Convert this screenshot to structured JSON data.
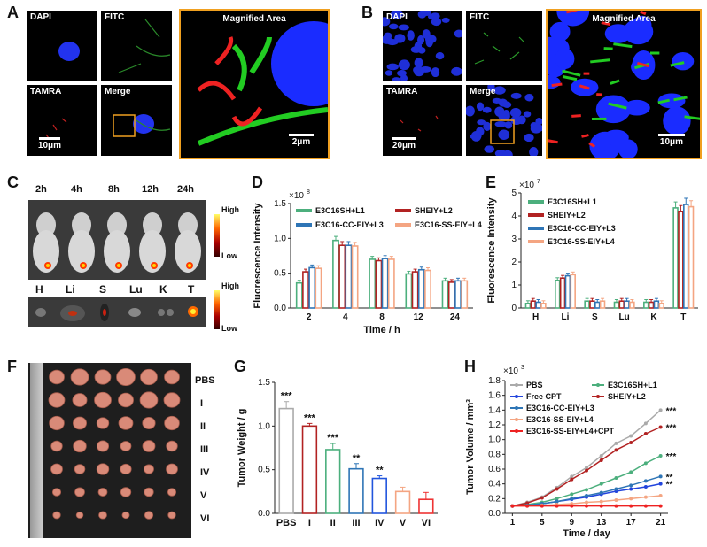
{
  "panels": {
    "A": {
      "letter": "A",
      "tiles": [
        "DAPI",
        "FITC",
        "TAMRA",
        "Merge"
      ],
      "magnified_title": "Magnified Area",
      "scale_small": "10μm",
      "scale_magnified": "2μm"
    },
    "B": {
      "letter": "B",
      "tiles": [
        "DAPI",
        "FITC",
        "TAMRA",
        "Merge"
      ],
      "magnified_title": "Magnified Area",
      "scale_small": "20μm",
      "scale_magnified": "10μm"
    },
    "C": {
      "letter": "C",
      "timepoints": [
        "2h",
        "4h",
        "8h",
        "12h",
        "24h"
      ],
      "organs": [
        "H",
        "Li",
        "S",
        "Lu",
        "K",
        "T"
      ],
      "colorbar_high": "High",
      "colorbar_low": "Low",
      "colors": {
        "background": "#333333",
        "hot": "#ff3b00",
        "warm": "#ffd400"
      }
    },
    "F": {
      "letter": "F",
      "rows": [
        "PBS",
        "I",
        "II",
        "III",
        "IV",
        "V",
        "VI"
      ],
      "tumor_color": "#d98a78"
    }
  },
  "charts": {
    "D": {
      "letter": "D",
      "multiplier": "×10",
      "multiplier_exp": "8",
      "ylabel": "Fluorescence Intensity",
      "xlabel": "Time / h"
    },
    "E": {
      "letter": "E",
      "multiplier": "×10",
      "multiplier_exp": "7",
      "ylabel": "Fluorescence Intensity",
      "xlabel": ""
    },
    "G": {
      "letter": "G",
      "ylabel": "Tumor Weight / g",
      "xlabel": ""
    },
    "H": {
      "letter": "H",
      "multiplier": "×10",
      "multiplier_exp": "3",
      "ylabel": "Tumor Volume / mm³",
      "xlabel": "Time / day"
    }
  },
  "chart_data": [
    {
      "id": "D",
      "type": "bar",
      "categories": [
        "2",
        "4",
        "8",
        "12",
        "24"
      ],
      "series": [
        {
          "name": "E3C16SH+L1",
          "color": "#4caf7d",
          "values": [
            0.36,
            0.97,
            0.7,
            0.49,
            0.39
          ]
        },
        {
          "name": "SHEIY+L2",
          "color": "#b22222",
          "values": [
            0.52,
            0.9,
            0.68,
            0.52,
            0.37
          ]
        },
        {
          "name": "E3C16-CC-EIY+L3",
          "color": "#2e75b6",
          "values": [
            0.58,
            0.9,
            0.71,
            0.55,
            0.39
          ]
        },
        {
          "name": "E3C16-SS-EIY+L4",
          "color": "#f4a582",
          "values": [
            0.57,
            0.89,
            0.7,
            0.54,
            0.39
          ]
        }
      ],
      "yticks": [
        "0.0",
        "0.5",
        "1.0",
        "1.5"
      ],
      "ylim": [
        0,
        1.5
      ],
      "legend": "top"
    },
    {
      "id": "E",
      "type": "bar",
      "categories": [
        "H",
        "Li",
        "S",
        "Lu",
        "K",
        "T"
      ],
      "series": [
        {
          "name": "E3C16SH+L1",
          "color": "#4caf7d",
          "values": [
            0.2,
            1.2,
            0.3,
            0.25,
            0.25,
            4.35
          ]
        },
        {
          "name": "SHEIY+L2",
          "color": "#b22222",
          "values": [
            0.3,
            1.3,
            0.3,
            0.3,
            0.25,
            4.2
          ]
        },
        {
          "name": "E3C16-CC-EIY+L3",
          "color": "#2e75b6",
          "values": [
            0.25,
            1.4,
            0.25,
            0.3,
            0.3,
            4.5
          ]
        },
        {
          "name": "E3C16-SS-EIY+L4",
          "color": "#f4a582",
          "values": [
            0.2,
            1.45,
            0.3,
            0.25,
            0.2,
            4.4
          ]
        }
      ],
      "yticks": [
        "0",
        "1",
        "2",
        "3",
        "4",
        "5"
      ],
      "ylim": [
        0,
        5
      ],
      "legend": "top-left"
    },
    {
      "id": "G",
      "type": "bar",
      "categories": [
        "PBS",
        "I",
        "II",
        "III",
        "IV",
        "V",
        "VI"
      ],
      "colors": [
        "#aaaaaa",
        "#b22222",
        "#4caf7d",
        "#2e75b6",
        "#2255dd",
        "#f4a582",
        "#ee3333"
      ],
      "values": [
        1.2,
        1.0,
        0.73,
        0.51,
        0.4,
        0.25,
        0.16
      ],
      "errors": [
        0.08,
        0.03,
        0.07,
        0.06,
        0.03,
        0.05,
        0.08
      ],
      "significance": [
        "***",
        "***",
        "***",
        "**",
        "**",
        "",
        ""
      ],
      "yticks": [
        "0.0",
        "0.5",
        "1.0",
        "1.5"
      ],
      "ylim": [
        0,
        1.5
      ]
    },
    {
      "id": "H",
      "type": "line",
      "x": [
        1,
        3,
        5,
        7,
        9,
        11,
        13,
        15,
        17,
        19,
        21
      ],
      "xticks": [
        "1",
        "5",
        "9",
        "13",
        "17",
        "21"
      ],
      "yticks": [
        "0.0",
        "0.2",
        "0.4",
        "0.6",
        "0.8",
        "1.0",
        "1.2",
        "1.4",
        "1.6",
        "1.8"
      ],
      "ylim": [
        0,
        1.8
      ],
      "xlim": [
        0,
        22
      ],
      "series": [
        {
          "name": "PBS",
          "color": "#aaaaaa",
          "values": [
            0.1,
            0.15,
            0.22,
            0.35,
            0.5,
            0.62,
            0.78,
            0.95,
            1.05,
            1.22,
            1.4
          ],
          "sig": "***"
        },
        {
          "name": "E3C16SH+L1",
          "color": "#4caf7d",
          "values": [
            0.1,
            0.12,
            0.15,
            0.2,
            0.26,
            0.32,
            0.4,
            0.48,
            0.56,
            0.68,
            0.78
          ],
          "sig": "***"
        },
        {
          "name": "Free CPT",
          "color": "#2244dd",
          "values": [
            0.1,
            0.11,
            0.13,
            0.16,
            0.19,
            0.22,
            0.26,
            0.3,
            0.33,
            0.36,
            0.4
          ],
          "sig": "**"
        },
        {
          "name": "SHEIY+L2",
          "color": "#b22222",
          "values": [
            0.1,
            0.14,
            0.21,
            0.33,
            0.46,
            0.58,
            0.72,
            0.86,
            0.96,
            1.08,
            1.17
          ],
          "sig": "***"
        },
        {
          "name": "E3C16-CC-EIY+L3",
          "color": "#2e75b6",
          "values": [
            0.1,
            0.11,
            0.13,
            0.16,
            0.2,
            0.24,
            0.28,
            0.33,
            0.38,
            0.44,
            0.5
          ],
          "sig": "**"
        },
        {
          "name": "E3C16-SS-EIY+L4",
          "color": "#f4a582",
          "values": [
            0.1,
            0.1,
            0.11,
            0.12,
            0.13,
            0.15,
            0.16,
            0.18,
            0.2,
            0.22,
            0.24
          ],
          "sig": ""
        },
        {
          "name": "E3C16-SS-EIY+L4+CPT",
          "color": "#ee2222",
          "values": [
            0.1,
            0.1,
            0.1,
            0.1,
            0.1,
            0.1,
            0.1,
            0.1,
            0.1,
            0.1,
            0.1
          ],
          "sig": ""
        }
      ]
    }
  ]
}
